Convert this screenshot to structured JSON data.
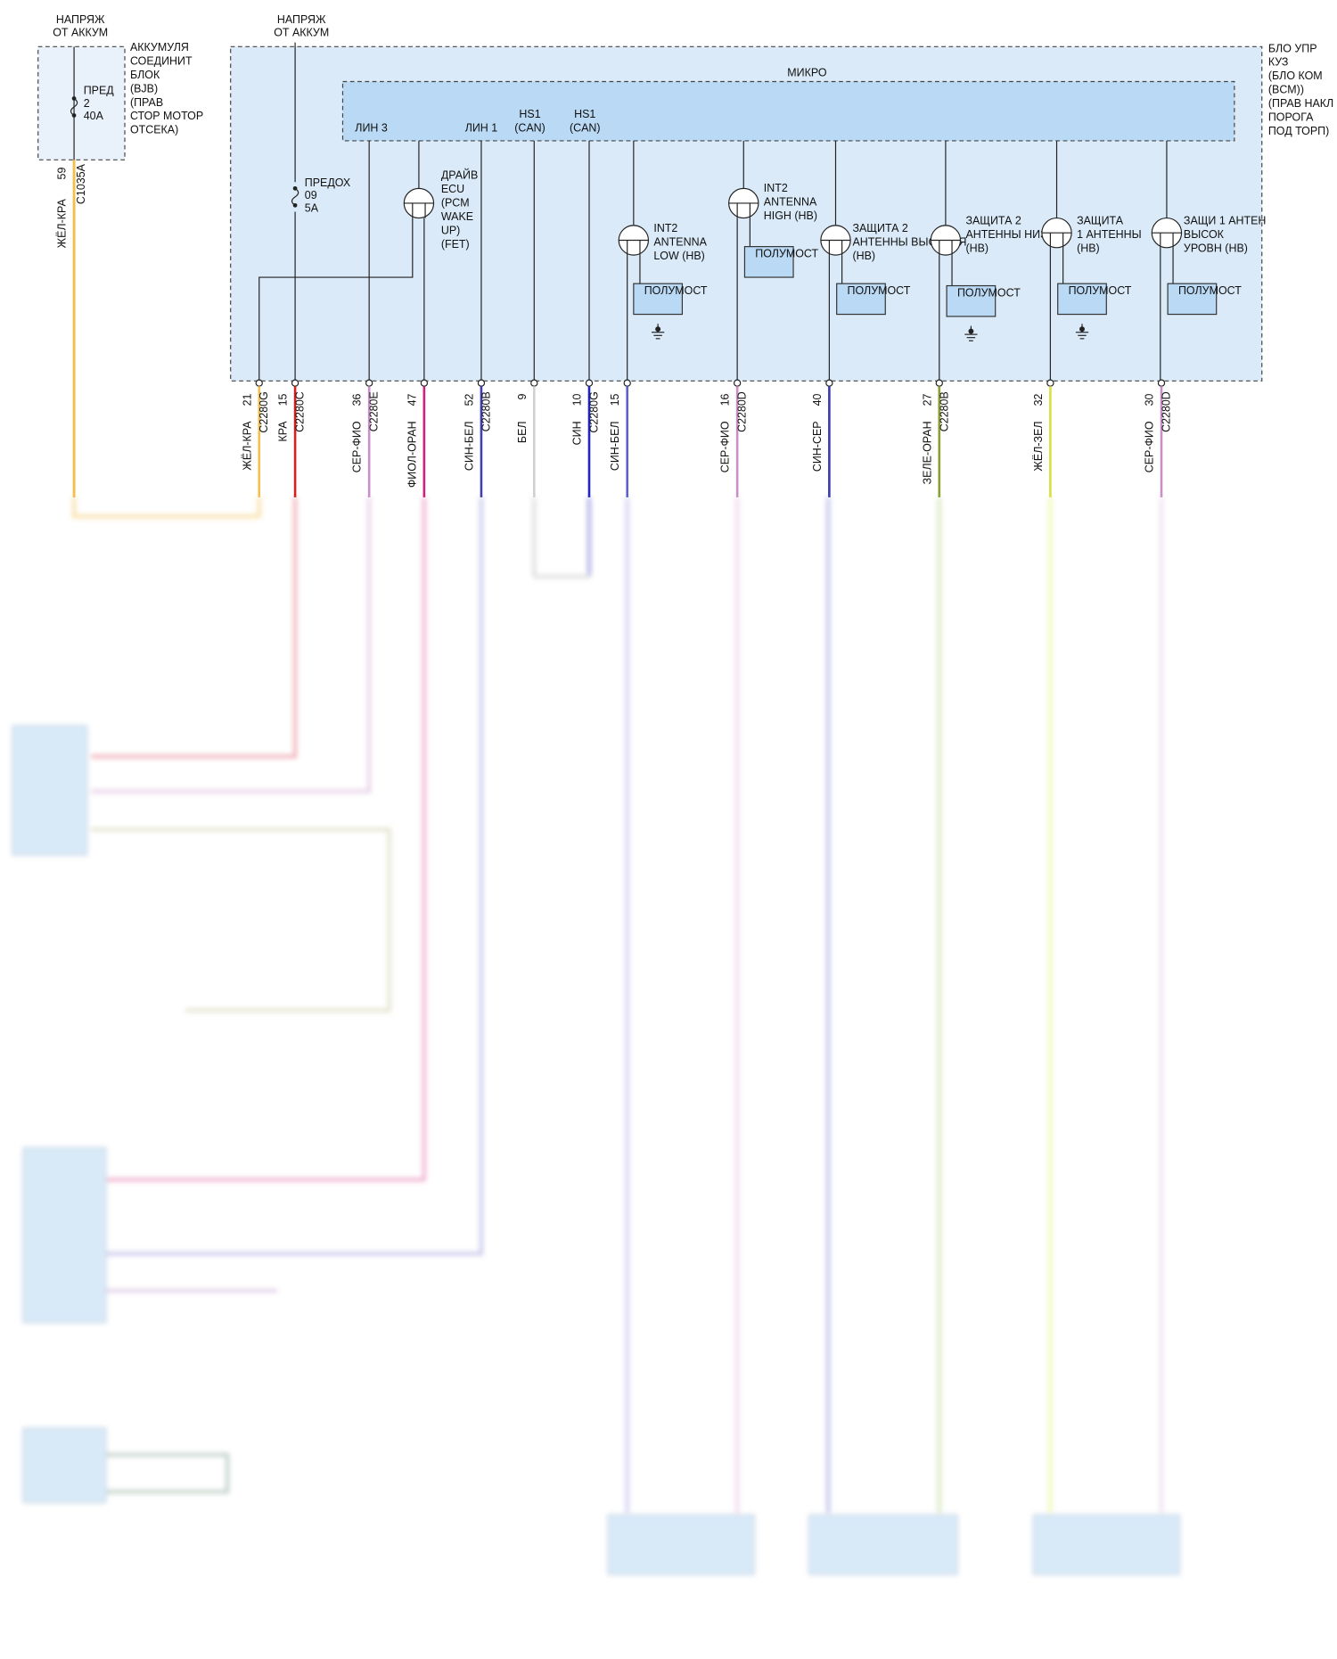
{
  "bjb": {
    "supply": [
      "НАПРЯЖ",
      "ОТ АККУМ"
    ],
    "label": [
      "АККУМУЛЯ",
      "СОЕДИНИТ",
      "БЛОК",
      "(BJB)",
      "(ПРАВ",
      "СТОР МОТОР",
      "ОТСЕКА)"
    ],
    "fuse": [
      "ПРЕД",
      "2",
      "40А"
    ],
    "pin": "59",
    "connector": "C1035A",
    "wire": "ЖЁЛ-КРА"
  },
  "bcm": {
    "supply": [
      "НАПРЯЖ",
      "ОТ АККУМ"
    ],
    "label": [
      "БЛО УПР",
      "КУЗ",
      "(БЛО КОМ",
      "(BCM))",
      "(ПРАВ НАКЛ",
      "ПОРОГА",
      "ПОД ТОРП)"
    ],
    "micro": "МИКРО",
    "fuse": [
      "ПРЕДОХ",
      "09",
      "5А"
    ],
    "ports": [
      {
        "label": [
          "ЛИН 3"
        ]
      },
      {
        "label": [
          "ЛИН 1"
        ]
      },
      {
        "label": [
          "HS1",
          "(CAN)"
        ]
      },
      {
        "label": [
          "HS1",
          "(CAN)"
        ]
      }
    ],
    "drivers": [
      {
        "label": [
          "ДРАЙВ",
          "ECU",
          "(PCM",
          "WAKE",
          "UP)",
          "(FET)"
        ]
      },
      {
        "label": [
          "INT2",
          "ANTENNA",
          "LOW (HB)"
        ],
        "box": "ПОЛУМОСТ"
      },
      {
        "label": [
          "INT2",
          "ANTENNA",
          "HIGH (HB)"
        ],
        "box": "ПОЛУМОСТ"
      },
      {
        "label": [
          "ЗАЩИТА 2",
          "АНТЕННЫ ВЫСОКАЯ",
          "(HB)"
        ],
        "box": "ПОЛУМОСТ"
      },
      {
        "label": [
          "ЗАЩИТА 2",
          "АНТЕННЫ НИЗКИЙ",
          "(HB)"
        ],
        "box": "ПОЛУМОСТ"
      },
      {
        "label": [
          "ЗАЩИТА",
          "1 АНТЕННЫ",
          "(HB)"
        ],
        "box": "ПОЛУМОСТ"
      },
      {
        "label": [
          "ЗАЩИ 1 АНТЕН",
          "ВЫСОК",
          "УРОВН (HB)"
        ],
        "box": "ПОЛУМОСТ"
      }
    ],
    "pins": [
      {
        "number": "21",
        "connector": "C2280G",
        "wire": "ЖЁЛ-КРА"
      },
      {
        "number": "15",
        "connector": "C2280C",
        "wire": "КРА"
      },
      {
        "number": "36",
        "connector": "C2280E",
        "wire": "СЕР-ФИО"
      },
      {
        "number": "47",
        "wire": "ФИОЛ-ОРАН"
      },
      {
        "number": "52",
        "connector": "C2280B",
        "wire": "СИН-БЕЛ"
      },
      {
        "number": "9",
        "wire": "БЕЛ"
      },
      {
        "number": "10",
        "connector": "C2280G",
        "wire": "СИН"
      },
      {
        "number": "15",
        "wire": "СИН-БЕЛ"
      },
      {
        "number": "16",
        "connector": "C2280D",
        "wire": "СЕР-ФИО"
      },
      {
        "number": "40",
        "wire": "СИН-СЕР"
      },
      {
        "number": "27",
        "connector": "C2280B",
        "wire": "ЗЕЛЕ-ОРАН"
      },
      {
        "number": "32",
        "wire": "ЖЁЛ-ЗЕЛ"
      },
      {
        "number": "30",
        "connector": "C2280D",
        "wire": "СЕР-ФИО"
      }
    ]
  }
}
